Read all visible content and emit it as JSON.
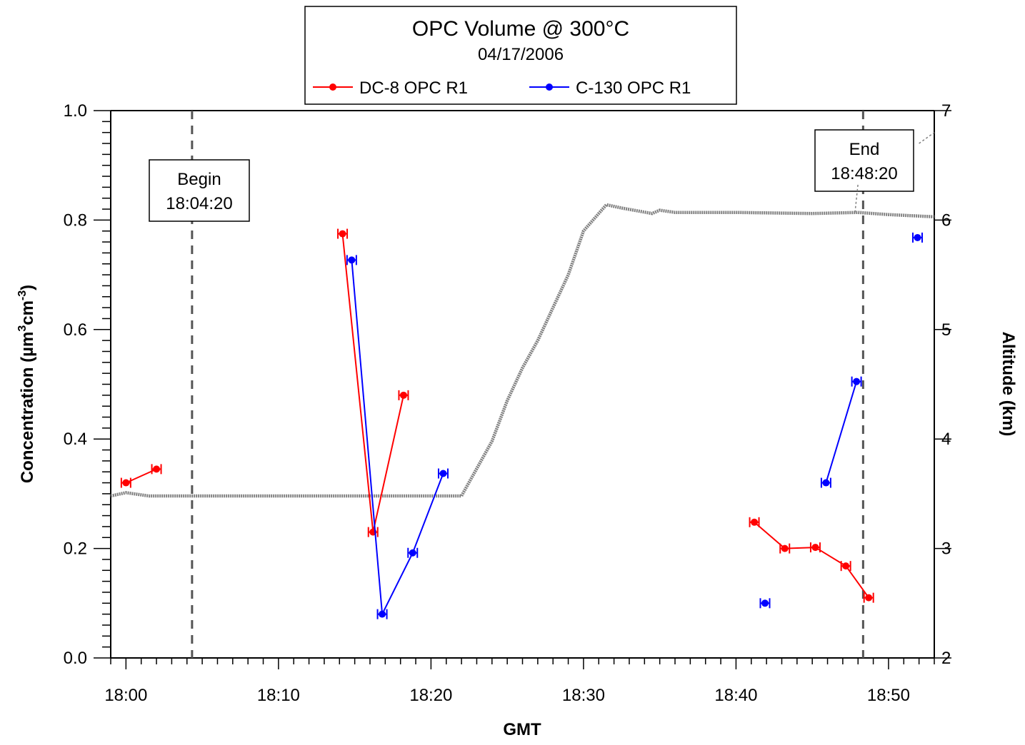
{
  "chart_data": {
    "type": "line",
    "title": "OPC Volume @ 300°C",
    "subtitle": "04/17/2006",
    "xlabel": "GMT",
    "ylabel": "Concentration  (µm³cm⁻³)",
    "ylabel_parts": {
      "base": "Concentration  (",
      "u1": "µm",
      "e1": "3",
      "u2": "cm",
      "e2": "-3",
      "close": ")"
    },
    "y2label": "Altitude  (km)",
    "x_range_minutes": [
      -1,
      53
    ],
    "x_ticks": [
      {
        "minute": 0,
        "label": "18:00"
      },
      {
        "minute": 10,
        "label": "18:10"
      },
      {
        "minute": 20,
        "label": "18:20"
      },
      {
        "minute": 30,
        "label": "18:30"
      },
      {
        "minute": 40,
        "label": "18:40"
      },
      {
        "minute": 50,
        "label": "18:50"
      }
    ],
    "ylim": [
      0,
      1
    ],
    "y_ticks": [
      "0.0",
      "0.2",
      "0.4",
      "0.6",
      "0.8",
      "1.0"
    ],
    "y2lim": [
      2,
      7
    ],
    "y2_ticks": [
      "2",
      "3",
      "4",
      "5",
      "6",
      "7"
    ],
    "grid": false,
    "legend_position": "top-center",
    "series": [
      {
        "name": "DC-8 OPC R1",
        "color": "#ff0000",
        "segments": [
          [
            {
              "t": "18:00:00",
              "y": 0.32
            },
            {
              "t": "18:02:00",
              "y": 0.345
            }
          ],
          [
            {
              "t": "18:14:12",
              "y": 0.775
            },
            {
              "t": "18:16:12",
              "y": 0.23
            },
            {
              "t": "18:18:12",
              "y": 0.48
            }
          ],
          [
            {
              "t": "18:41:12",
              "y": 0.248
            },
            {
              "t": "18:43:12",
              "y": 0.2
            },
            {
              "t": "18:45:12",
              "y": 0.202
            },
            {
              "t": "18:47:12",
              "y": 0.168
            },
            {
              "t": "18:48:42",
              "y": 0.11
            }
          ]
        ]
      },
      {
        "name": "C-130 OPC R1",
        "color": "#0000ff",
        "segments": [
          [
            {
              "t": "18:14:48",
              "y": 0.727
            },
            {
              "t": "18:16:48",
              "y": 0.08
            },
            {
              "t": "18:18:48",
              "y": 0.192
            },
            {
              "t": "18:20:48",
              "y": 0.337
            }
          ],
          [
            {
              "t": "18:41:54",
              "y": 0.1
            }
          ],
          [
            {
              "t": "18:45:54",
              "y": 0.32
            },
            {
              "t": "18:47:54",
              "y": 0.505
            }
          ],
          [
            {
              "t": "18:51:54",
              "y": 0.768
            }
          ]
        ]
      }
    ],
    "altitude_km": {
      "color": "#808080",
      "points": [
        {
          "t": "17:59:00",
          "km": 3.48
        },
        {
          "t": "18:00:00",
          "km": 3.51
        },
        {
          "t": "18:01:30",
          "km": 3.48
        },
        {
          "t": "18:10:00",
          "km": 3.48
        },
        {
          "t": "18:22:00",
          "km": 3.48
        },
        {
          "t": "18:24:00",
          "km": 3.98
        },
        {
          "t": "18:25:00",
          "km": 4.35
        },
        {
          "t": "18:26:00",
          "km": 4.65
        },
        {
          "t": "18:27:00",
          "km": 4.9
        },
        {
          "t": "18:28:00",
          "km": 5.2
        },
        {
          "t": "18:29:00",
          "km": 5.5
        },
        {
          "t": "18:30:00",
          "km": 5.9
        },
        {
          "t": "18:31:30",
          "km": 6.14
        },
        {
          "t": "18:32:30",
          "km": 6.11
        },
        {
          "t": "18:34:30",
          "km": 6.06
        },
        {
          "t": "18:35:00",
          "km": 6.09
        },
        {
          "t": "18:36:00",
          "km": 6.07
        },
        {
          "t": "18:40:00",
          "km": 6.07
        },
        {
          "t": "18:45:00",
          "km": 6.06
        },
        {
          "t": "18:48:00",
          "km": 6.07
        },
        {
          "t": "18:50:00",
          "km": 6.05
        },
        {
          "t": "18:53:00",
          "km": 6.03
        }
      ],
      "excursions": [
        [
          {
            "t": "18:47:48",
            "km": 6.07
          },
          {
            "t": "18:48:00",
            "km": 6.33
          }
        ],
        [
          {
            "t": "18:52:00",
            "km": 6.7
          },
          {
            "t": "18:53:00",
            "km": 6.8
          }
        ]
      ]
    },
    "annotations": [
      {
        "text": "Begin",
        "time": "18:04:20",
        "t": "18:04:20"
      },
      {
        "text": "End",
        "time": "18:48:20",
        "t": "18:48:20"
      }
    ]
  }
}
